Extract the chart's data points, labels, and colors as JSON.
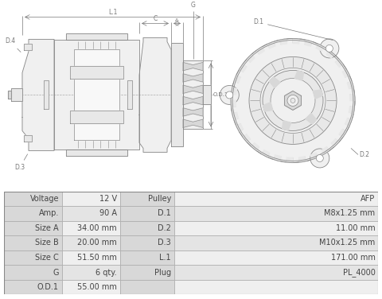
{
  "bg_color": "#ffffff",
  "line_color": "#888888",
  "dim_color": "#777777",
  "fill_light": "#f0f0f0",
  "fill_mid": "#e8e8e8",
  "fill_dark": "#d8d8d8",
  "text_color": "#444444",
  "table_header_bg": "#d8d8d8",
  "table_row_bg_even": "#efefef",
  "table_row_bg_odd": "#e4e4e4",
  "table_border": "#aaaaaa",
  "table_data": [
    [
      "Voltage",
      "12 V",
      "Pulley",
      "AFP"
    ],
    [
      "Amp.",
      "90 A",
      "D.1",
      "M8x1.25 mm"
    ],
    [
      "Size A",
      "34.00 mm",
      "D.2",
      "11.00 mm"
    ],
    [
      "Size B",
      "20.00 mm",
      "D.3",
      "M10x1.25 mm"
    ],
    [
      "Size C",
      "51.50 mm",
      "L.1",
      "171.00 mm"
    ],
    [
      "G",
      "6 qty.",
      "Plug",
      "PL_4000"
    ],
    [
      "O.D.1",
      "55.00 mm",
      "",
      ""
    ]
  ],
  "font_size_table": 7.0
}
